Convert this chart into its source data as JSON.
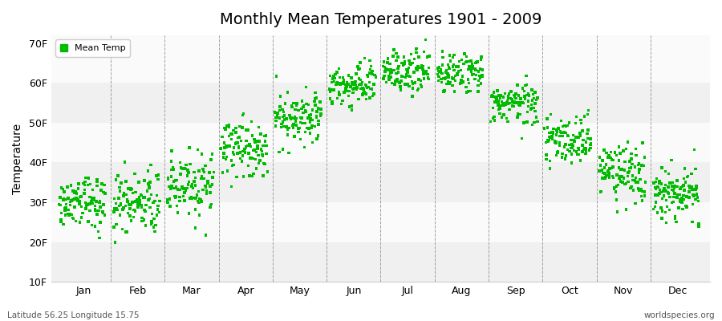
{
  "title": "Monthly Mean Temperatures 1901 - 2009",
  "ylabel": "Temperature",
  "footer_left": "Latitude 56.25 Longitude 15.75",
  "footer_right": "worldspecies.org",
  "legend_label": "Mean Temp",
  "months": [
    "Jan",
    "Feb",
    "Mar",
    "Apr",
    "May",
    "Jun",
    "Jul",
    "Aug",
    "Sep",
    "Oct",
    "Nov",
    "Dec"
  ],
  "ylim": [
    10,
    72
  ],
  "yticks": [
    10,
    20,
    30,
    40,
    50,
    60,
    70
  ],
  "ytick_labels": [
    "10F",
    "20F",
    "30F",
    "40F",
    "50F",
    "60F",
    "70F"
  ],
  "marker_color": "#00bb00",
  "marker": "s",
  "marker_size": 2.5,
  "background_color": "#ffffff",
  "band_colors": [
    "#f0f0f0",
    "#fafafa"
  ],
  "n_years": 109,
  "monthly_means": [
    30.0,
    29.5,
    34.0,
    43.0,
    51.5,
    59.5,
    63.0,
    62.5,
    55.0,
    45.5,
    37.0,
    32.0
  ],
  "monthly_stds": [
    3.5,
    4.0,
    4.0,
    3.5,
    3.0,
    2.5,
    2.5,
    2.5,
    2.5,
    3.0,
    3.5,
    3.5
  ],
  "title_fontsize": 14,
  "axis_fontsize": 9,
  "ylabel_fontsize": 10,
  "legend_fontsize": 8,
  "footer_fontsize": 7.5
}
